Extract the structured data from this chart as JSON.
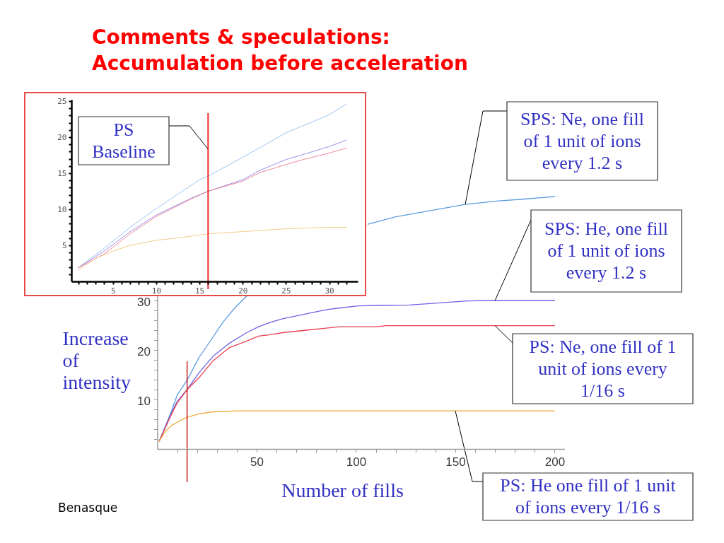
{
  "chart_data": [
    {
      "type": "line",
      "title": "Comments & speculations: Accumulation before acceleration",
      "xlabel": "Number of fills",
      "ylabel": "Increase of intensity",
      "xlim": [
        0,
        205
      ],
      "ylim": [
        0,
        52
      ],
      "xticks": [
        {
          "value": 10,
          "label": null
        },
        {
          "value": 20,
          "label": null
        },
        {
          "value": 30,
          "label": null
        },
        {
          "value": 40,
          "label": null
        },
        50,
        {
          "value": 60,
          "label": null
        },
        {
          "value": 70,
          "label": null
        },
        {
          "value": 80,
          "label": null
        },
        {
          "value": 90,
          "label": null
        },
        100,
        {
          "value": 110,
          "label": null
        },
        {
          "value": 120,
          "label": null
        },
        {
          "value": 130,
          "label": null
        },
        {
          "value": 140,
          "label": null
        },
        150,
        {
          "value": 160,
          "label": null
        },
        {
          "value": 170,
          "label": null
        },
        {
          "value": 180,
          "label": null
        },
        {
          "value": 190,
          "label": null
        },
        200
      ],
      "yticks": [
        {
          "value": 2,
          "label": null
        },
        {
          "value": 4,
          "label": null
        },
        {
          "value": 6,
          "label": null
        },
        {
          "value": 8,
          "label": null
        },
        10,
        {
          "value": 12,
          "label": null
        },
        {
          "value": 14,
          "label": null
        },
        {
          "value": 16,
          "label": null
        },
        {
          "value": 18,
          "label": null
        },
        20,
        {
          "value": 22,
          "label": null
        },
        {
          "value": 24,
          "label": null
        },
        {
          "value": 26,
          "label": null
        },
        {
          "value": 28,
          "label": null
        },
        30
      ],
      "series": [
        {
          "color": "#5a9be0",
          "x": [
            1,
            7,
            10,
            15,
            21,
            27,
            33,
            39,
            45,
            75,
            106,
            120,
            134,
            155,
            171,
            185,
            200
          ],
          "values": [
            1.6,
            7.5,
            10.9,
            13.9,
            18.5,
            22.0,
            25.6,
            28.5,
            30.9,
            null,
            45.4,
            46.9,
            47.9,
            49.4,
            50.1,
            50.5,
            51.0
          ]
        },
        {
          "color": "#6c63e6",
          "x": [
            1,
            7,
            10,
            15,
            21,
            28,
            36,
            45,
            51,
            57,
            63,
            69,
            75,
            81,
            86,
            92,
            101,
            110,
            127,
            156,
            170,
            200
          ],
          "values": [
            1.6,
            7.2,
            9.6,
            12.0,
            15.4,
            18.7,
            21.3,
            23.5,
            24.7,
            25.6,
            26.3,
            26.8,
            27.3,
            27.8,
            28.2,
            28.5,
            28.9,
            29.0,
            29.1,
            29.9,
            30.0,
            30.0
          ]
        },
        {
          "color": "#e8404f",
          "x": [
            1,
            7,
            10,
            15,
            21,
            28,
            36,
            45,
            51,
            57,
            63,
            75,
            85,
            92,
            110,
            115,
            150,
            200
          ],
          "values": [
            1.6,
            6.9,
            9.3,
            12.0,
            14.4,
            17.8,
            20.4,
            21.8,
            22.8,
            23.1,
            23.5,
            24.0,
            24.4,
            24.7,
            24.7,
            24.9,
            24.9,
            24.9
          ]
        },
        {
          "color": "#f0aa3c",
          "x": [
            1,
            4,
            7,
            10,
            15,
            21,
            28,
            40,
            80,
            120,
            160,
            200
          ],
          "values": [
            1.6,
            3.5,
            4.7,
            5.4,
            6.4,
            7.1,
            7.5,
            7.7,
            7.7,
            7.7,
            7.7,
            7.7
          ]
        }
      ],
      "ref_lines": [
        {
          "axis": "x",
          "value": 15,
          "color": "#c41e1e"
        }
      ],
      "annotations": [
        {
          "text": "SPS: Ne, one fill of 1 unit of ions every 1.2 s",
          "x": 155,
          "y": 49.4
        },
        {
          "text": "SPS: He, one fill of 1 unit of ions every 1.2 s",
          "x": 170,
          "y": 30.0
        },
        {
          "text": "PS: Ne, one fill of 1 unit of ions every 1/16 s",
          "x": 170,
          "y": 24.9
        },
        {
          "text": "PS: He one fill of 1 unit of ions every 1/16 s",
          "x": 150,
          "y": 7.7
        },
        "Benasque"
      ]
    },
    {
      "type": "line",
      "xlim": [
        0.2,
        33.3
      ],
      "ylim": [
        0,
        25.2
      ],
      "xticks": [
        {
          "value": 1,
          "label": null
        },
        {
          "value": 2,
          "label": null
        },
        {
          "value": 3,
          "label": null
        },
        {
          "value": 4,
          "label": null
        },
        5,
        {
          "value": 6,
          "label": null
        },
        {
          "value": 7,
          "label": null
        },
        {
          "value": 8,
          "label": null
        },
        {
          "value": 9,
          "label": null
        },
        10,
        {
          "value": 11,
          "label": null
        },
        {
          "value": 12,
          "label": null
        },
        {
          "value": 13,
          "label": null
        },
        {
          "value": 14,
          "label": null
        },
        15,
        {
          "value": 16,
          "label": null
        },
        {
          "value": 17,
          "label": null
        },
        {
          "value": 18,
          "label": null
        },
        {
          "value": 19,
          "label": null
        },
        20,
        {
          "value": 21,
          "label": null
        },
        {
          "value": 22,
          "label": null
        },
        {
          "value": 23,
          "label": null
        },
        {
          "value": 24,
          "label": null
        },
        25,
        {
          "value": 26,
          "label": null
        },
        {
          "value": 27,
          "label": null
        },
        {
          "value": 28,
          "label": null
        },
        {
          "value": 29,
          "label": null
        },
        30,
        {
          "value": 31,
          "label": null
        },
        {
          "value": 32,
          "label": null
        }
      ],
      "yticks": [
        {
          "value": 1,
          "label": null
        },
        {
          "value": 2,
          "label": null
        },
        {
          "value": 3,
          "label": null
        },
        {
          "value": 4,
          "label": null
        },
        5,
        {
          "value": 6,
          "label": null
        },
        {
          "value": 7,
          "label": null
        },
        {
          "value": 8,
          "label": null
        },
        {
          "value": 9,
          "label": null
        },
        10,
        {
          "value": 11,
          "label": null
        },
        {
          "value": 12,
          "label": null
        },
        {
          "value": 13,
          "label": null
        },
        {
          "value": 14,
          "label": null
        },
        15,
        {
          "value": 16,
          "label": null
        },
        {
          "value": 17,
          "label": null
        },
        {
          "value": 18,
          "label": null
        },
        {
          "value": 19,
          "label": null
        },
        20,
        {
          "value": 21,
          "label": null
        },
        {
          "value": 22,
          "label": null
        },
        {
          "value": 23,
          "label": null
        },
        {
          "value": 24,
          "label": null
        },
        25
      ],
      "series": [
        {
          "color": "#8fbdf0",
          "x": [
            1,
            4,
            7,
            10,
            15,
            16,
            20,
            25,
            30,
            32
          ],
          "values": [
            1.9,
            4.6,
            7.5,
            10.1,
            14.1,
            14.6,
            17.2,
            20.6,
            23.1,
            24.6
          ]
        },
        {
          "color": "#8a7fe6",
          "x": [
            1,
            4,
            7,
            10,
            14,
            16,
            20,
            22,
            25,
            27,
            30,
            32
          ],
          "values": [
            1.9,
            4.2,
            6.9,
            9.2,
            11.5,
            12.5,
            14.1,
            15.4,
            16.9,
            17.6,
            18.7,
            19.6
          ]
        },
        {
          "color": "#f07a8c",
          "x": [
            1,
            4,
            7,
            10,
            14,
            16,
            20,
            22,
            25,
            27,
            30,
            32
          ],
          "values": [
            1.9,
            3.8,
            6.6,
            9.0,
            11.4,
            12.5,
            13.9,
            15.1,
            16.2,
            16.9,
            17.8,
            18.5
          ]
        },
        {
          "color": "#f3c27a",
          "x": [
            1,
            3,
            5,
            7,
            10,
            13,
            16,
            20,
            25,
            30,
            32
          ],
          "values": [
            1.6,
            3.2,
            4.2,
            5.0,
            5.7,
            6.1,
            6.6,
            6.9,
            7.3,
            7.5,
            7.5
          ]
        }
      ],
      "ref_lines": [
        {
          "axis": "x",
          "value": 16,
          "label": "PS Baseline",
          "color": "#ee2a2a"
        }
      ]
    }
  ]
}
